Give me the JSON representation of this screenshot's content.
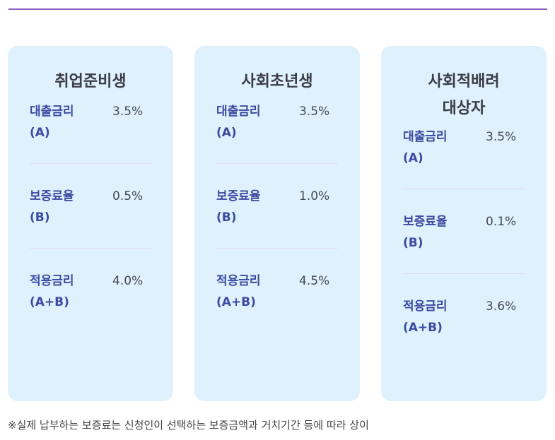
{
  "cards": [
    {
      "title": "취업준비생",
      "rows": [
        {
          "label": "대출금리\n(A)",
          "value": "3.5%"
        },
        {
          "label": "보증료율\n(B)",
          "value": "0.5%"
        },
        {
          "label": "적용금리\n(A+B)",
          "value": "4.0%"
        }
      ]
    },
    {
      "title": "사회초년생",
      "rows": [
        {
          "label": "대출금리\n(A)",
          "value": "3.5%"
        },
        {
          "label": "보증료율\n(B)",
          "value": "1.0%"
        },
        {
          "label": "적용금리\n(A+B)",
          "value": "4.5%"
        }
      ]
    },
    {
      "title": "사회적배려\n대상자",
      "rows": [
        {
          "label": "대출금리\n(A)",
          "value": "3.5%"
        },
        {
          "label": "보증료율\n(B)",
          "value": "0.1%"
        },
        {
          "label": "적용금리\n(A+B)",
          "value": "3.6%"
        }
      ]
    }
  ],
  "footnote": "※실제 납부하는 보증료는 신청인이 선택하는 보증금액과 거치기간 등에 따라 상이",
  "colors": {
    "accent_rule": "#8a5bbf",
    "card_bg": "#dff1fd",
    "label": "#3b4aa0",
    "value": "#444a55"
  }
}
